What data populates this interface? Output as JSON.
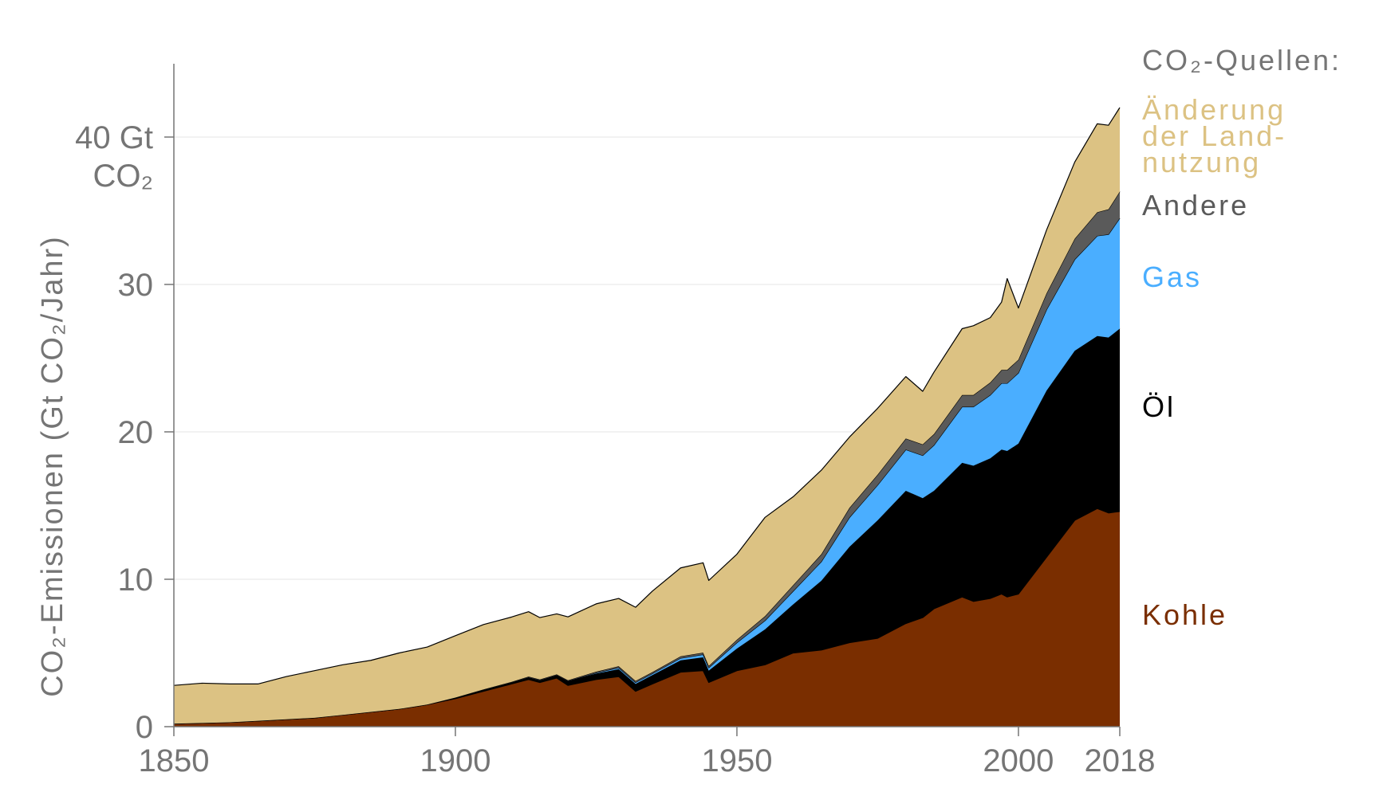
{
  "chart_data": {
    "type": "area",
    "stacked": true,
    "ylabel": "CO₂-Emissionen (Gt CO₂/Jahr)",
    "ytop_label": [
      "40 Gt",
      "CO₂"
    ],
    "xlim": [
      1850,
      2018
    ],
    "ylim": [
      0,
      45
    ],
    "yticks": [
      0,
      10,
      20,
      30,
      40
    ],
    "xticks": [
      1850,
      1900,
      1950,
      2000,
      2018
    ],
    "grid": "horizontal",
    "legend_title": "CO₂-Quellen:",
    "legend_placement": "right",
    "colors": {
      "kohle": "#7a2e00",
      "oel": "#000000",
      "gas": "#4aaeff",
      "andere": "#5a5a5a",
      "land": "#dcc283",
      "axis": "#757575",
      "grid": "#e5e5e5"
    },
    "x": [
      1850,
      1855,
      1860,
      1865,
      1870,
      1875,
      1880,
      1885,
      1890,
      1895,
      1900,
      1905,
      1910,
      1913,
      1915,
      1918,
      1920,
      1925,
      1929,
      1932,
      1935,
      1940,
      1944,
      1945,
      1950,
      1955,
      1960,
      1965,
      1970,
      1975,
      1980,
      1983,
      1985,
      1990,
      1992,
      1995,
      1997,
      1998,
      2000,
      2005,
      2010,
      2014,
      2016,
      2018
    ],
    "series": [
      {
        "name": "Kohle",
        "values": [
          0.2,
          0.25,
          0.3,
          0.4,
          0.5,
          0.6,
          0.8,
          1.0,
          1.2,
          1.5,
          1.9,
          2.4,
          2.9,
          3.2,
          3.0,
          3.3,
          2.8,
          3.2,
          3.4,
          2.4,
          2.9,
          3.7,
          3.8,
          3.0,
          3.8,
          4.2,
          5.0,
          5.2,
          5.7,
          6.0,
          7.0,
          7.4,
          8.0,
          8.8,
          8.5,
          8.7,
          9.0,
          8.8,
          9.0,
          11.5,
          14.0,
          14.8,
          14.5,
          14.6
        ]
      },
      {
        "name": "Öl",
        "values": [
          0,
          0,
          0,
          0,
          0,
          0,
          0,
          0,
          0,
          0,
          0.05,
          0.1,
          0.1,
          0.15,
          0.15,
          0.2,
          0.3,
          0.4,
          0.5,
          0.5,
          0.6,
          0.8,
          0.9,
          0.8,
          1.5,
          2.4,
          3.3,
          4.7,
          6.5,
          8.0,
          9.0,
          8.1,
          8.0,
          9.1,
          9.2,
          9.5,
          9.8,
          9.9,
          10.2,
          11.3,
          11.5,
          11.7,
          11.9,
          12.4
        ]
      },
      {
        "name": "Gas",
        "values": [
          0,
          0,
          0,
          0,
          0,
          0,
          0,
          0,
          0,
          0,
          0.0,
          0.0,
          0.0,
          0.0,
          0.0,
          0.0,
          0.0,
          0.05,
          0.1,
          0.1,
          0.1,
          0.15,
          0.2,
          0.2,
          0.4,
          0.6,
          0.9,
          1.3,
          2.0,
          2.4,
          2.8,
          2.9,
          3.1,
          3.8,
          4.0,
          4.3,
          4.5,
          4.6,
          4.8,
          5.5,
          6.2,
          6.8,
          7.0,
          7.5
        ]
      },
      {
        "name": "Andere",
        "values": [
          0,
          0,
          0,
          0,
          0,
          0,
          0,
          0,
          0,
          0,
          0.02,
          0.03,
          0.04,
          0.05,
          0.05,
          0.05,
          0.05,
          0.08,
          0.1,
          0.1,
          0.1,
          0.12,
          0.12,
          0.12,
          0.2,
          0.3,
          0.4,
          0.5,
          0.65,
          0.7,
          0.75,
          0.75,
          0.75,
          0.8,
          0.8,
          0.85,
          0.9,
          0.9,
          0.9,
          1.1,
          1.4,
          1.6,
          1.7,
          1.8
        ]
      },
      {
        "name": "Änderung der Landnutzung",
        "values": [
          2.6,
          2.7,
          2.6,
          2.5,
          2.9,
          3.2,
          3.4,
          3.5,
          3.8,
          3.9,
          4.2,
          4.4,
          4.4,
          4.4,
          4.2,
          4.1,
          4.3,
          4.6,
          4.6,
          5.0,
          5.5,
          6.0,
          6.1,
          5.8,
          5.8,
          6.7,
          6.0,
          5.7,
          4.8,
          4.5,
          4.2,
          3.6,
          4.2,
          4.5,
          4.7,
          4.4,
          4.6,
          6.2,
          3.5,
          4.3,
          5.2,
          6.0,
          5.7,
          5.7
        ]
      }
    ]
  }
}
